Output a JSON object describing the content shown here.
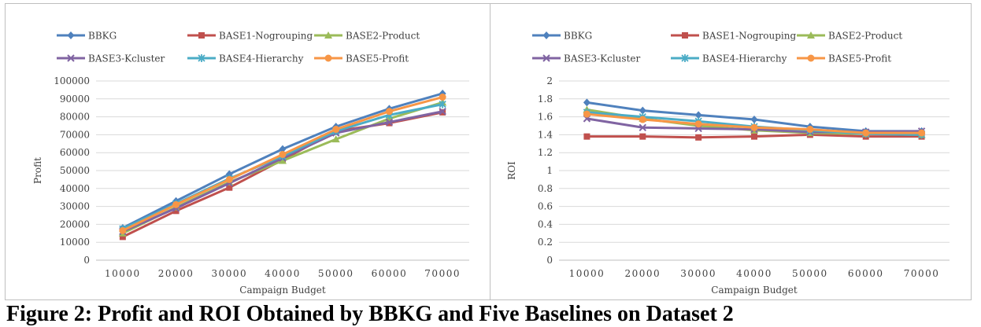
{
  "caption": "Figure 2: Profit and ROI Obtained by BBKG and Five Baselines on Dataset 2",
  "chart_data": [
    {
      "type": "line",
      "title": "",
      "xlabel": "Campaign Budget",
      "ylabel": "Profit",
      "categories": [
        "10000",
        "20000",
        "30000",
        "40000",
        "50000",
        "60000",
        "70000"
      ],
      "ylim": [
        0,
        100000
      ],
      "yticks": [
        0,
        10000,
        20000,
        30000,
        40000,
        50000,
        60000,
        70000,
        80000,
        90000,
        100000
      ],
      "ytick_labels": [
        "0",
        "10000",
        "20000",
        "30000",
        "40000",
        "50000",
        "60000",
        "70000",
        "80000",
        "90000",
        "100000"
      ],
      "grid": true,
      "legend": "top",
      "series": [
        {
          "name": "BBKG",
          "color": "#4f81bd",
          "marker": "diamond",
          "values": [
            18000,
            33000,
            48000,
            62000,
            74500,
            84500,
            93000
          ]
        },
        {
          "name": "BASE1-Nogrouping",
          "color": "#c0504d",
          "marker": "square",
          "values": [
            13000,
            27500,
            40500,
            56000,
            72000,
            76500,
            82500
          ]
        },
        {
          "name": "BASE2-Product",
          "color": "#9bbb59",
          "marker": "triangle",
          "values": [
            15000,
            29500,
            43500,
            55500,
            67500,
            79000,
            88000
          ]
        },
        {
          "name": "BASE3-Kcluster",
          "color": "#8064a2",
          "marker": "x",
          "values": [
            16000,
            29000,
            43000,
            57000,
            71000,
            77000,
            83000
          ]
        },
        {
          "name": "BASE4-Hierarchy",
          "color": "#4bacc6",
          "marker": "star",
          "values": [
            17500,
            31500,
            45500,
            58000,
            72000,
            81000,
            87000
          ]
        },
        {
          "name": "BASE5-Profit",
          "color": "#f79646",
          "marker": "circle",
          "values": [
            16500,
            31000,
            45000,
            59000,
            73000,
            83000,
            91000
          ]
        }
      ]
    },
    {
      "type": "line",
      "title": "",
      "xlabel": "Campaign Budget",
      "ylabel": "ROI",
      "categories": [
        "10000",
        "20000",
        "30000",
        "40000",
        "50000",
        "60000",
        "70000"
      ],
      "ylim": [
        0,
        2
      ],
      "yticks": [
        0,
        0.2,
        0.4,
        0.6,
        0.8,
        1,
        1.2,
        1.4,
        1.6,
        1.8,
        2
      ],
      "ytick_labels": [
        "0",
        "0.2",
        "0.4",
        "0.6",
        "0.8",
        "1",
        "1.2",
        "1.4",
        "1.6",
        "1.8",
        "2"
      ],
      "grid": true,
      "legend": "top",
      "series": [
        {
          "name": "BBKG",
          "color": "#4f81bd",
          "marker": "diamond",
          "values": [
            1.76,
            1.67,
            1.62,
            1.57,
            1.49,
            1.44,
            1.44
          ]
        },
        {
          "name": "BASE1-Nogrouping",
          "color": "#c0504d",
          "marker": "square",
          "values": [
            1.38,
            1.38,
            1.37,
            1.38,
            1.4,
            1.38,
            1.38
          ]
        },
        {
          "name": "BASE2-Product",
          "color": "#9bbb59",
          "marker": "triangle",
          "values": [
            1.68,
            1.58,
            1.5,
            1.45,
            1.42,
            1.41,
            1.4
          ]
        },
        {
          "name": "BASE3-Kcluster",
          "color": "#8064a2",
          "marker": "x",
          "values": [
            1.58,
            1.48,
            1.47,
            1.46,
            1.43,
            1.43,
            1.44
          ]
        },
        {
          "name": "BASE4-Hierarchy",
          "color": "#4bacc6",
          "marker": "star",
          "values": [
            1.65,
            1.6,
            1.55,
            1.49,
            1.45,
            1.41,
            1.4
          ]
        },
        {
          "name": "BASE5-Profit",
          "color": "#f79646",
          "marker": "circle",
          "values": [
            1.63,
            1.57,
            1.52,
            1.48,
            1.46,
            1.42,
            1.42
          ]
        }
      ]
    }
  ]
}
